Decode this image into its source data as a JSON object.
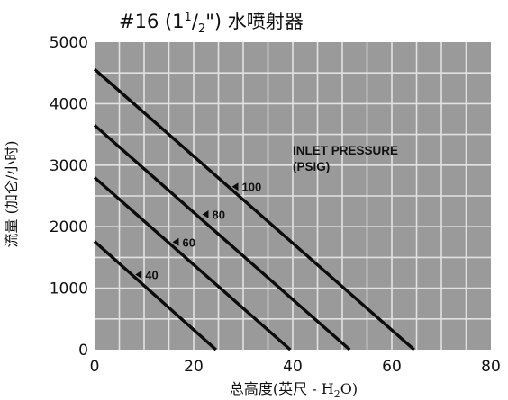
{
  "chart_data": {
    "type": "line",
    "title": {
      "prefix": "#16 (1",
      "frac_num": "1",
      "frac_slash": "/",
      "frac_den": "2",
      "suffix": "\") 水喷射器"
    },
    "xlabel": {
      "main": "总高度(英尺 - H",
      "sub": "2",
      "end": "O)"
    },
    "ylabel": "流量 (加仑/小时)",
    "xlim": [
      0,
      80
    ],
    "ylim": [
      0,
      5000
    ],
    "x_ticks": [
      0,
      20,
      40,
      60,
      80
    ],
    "x_tick_labels": [
      "0",
      "20",
      "40",
      "60",
      "80"
    ],
    "y_ticks": [
      0,
      1000,
      2000,
      3000,
      4000,
      5000
    ],
    "y_tick_labels": [
      "0",
      "1000",
      "2000",
      "3000",
      "4000",
      "5000"
    ],
    "grid": true,
    "annotation": [
      "INLET PRESSURE",
      "(PSIG)"
    ],
    "series": [
      {
        "name": "100",
        "x": [
          0,
          64.5
        ],
        "y": [
          4560,
          0
        ],
        "label_at": [
          29,
          2650
        ]
      },
      {
        "name": "80",
        "x": [
          0,
          51.5
        ],
        "y": [
          3650,
          0
        ],
        "label_at": [
          23,
          2200
        ]
      },
      {
        "name": "60",
        "x": [
          0,
          39.5
        ],
        "y": [
          2800,
          0
        ],
        "label_at": [
          17,
          1750
        ]
      },
      {
        "name": "40",
        "x": [
          0,
          24.5
        ],
        "y": [
          1760,
          0
        ],
        "label_at": [
          9.5,
          1220
        ]
      }
    ],
    "colors": {
      "plot_background": "#9a9a9a",
      "grid": "#e2e2e2",
      "line": "#0c0c0c",
      "text": "#111111"
    }
  }
}
